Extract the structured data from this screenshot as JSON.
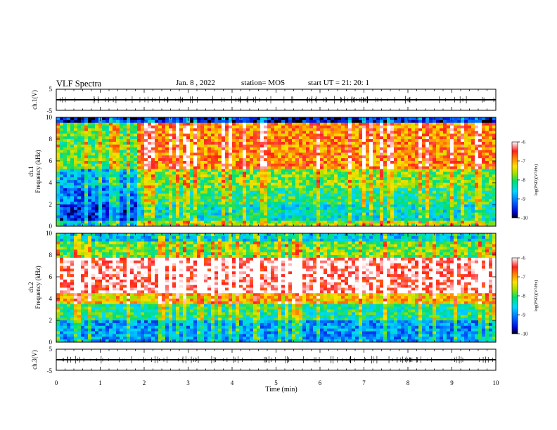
{
  "header": {
    "title": "VLF Spectra",
    "date": "Jan. 8 , 2022",
    "station": "station= MOS",
    "start": "start UT = 21: 20: 1"
  },
  "chart_data": [
    {
      "type": "line",
      "panel": "ch1-waveform",
      "ylabel": "ch.1(V)",
      "yticks": [
        "5",
        "-5"
      ],
      "ylim": [
        -5,
        5
      ],
      "xlim": [
        0,
        10
      ],
      "baseline": 0
    },
    {
      "type": "heatmap",
      "panel": "ch1-spectrogram",
      "ylabel_line1": "ch.1",
      "ylabel_line2": "Frequency (kHz)",
      "ylim": [
        0,
        10
      ],
      "yticks": [
        "0",
        "2",
        "4",
        "6",
        "8",
        "10"
      ],
      "xlim": [
        0,
        10
      ],
      "colorbar": {
        "label": "log(PSD)(V²/Hz)",
        "ticks": [
          "-6",
          "-7",
          "-8",
          "-9",
          "-10"
        ],
        "range": [
          -10,
          -6
        ]
      },
      "bands": [
        {
          "lo": 9.5,
          "hi": 10.0,
          "level": -9.6
        },
        {
          "lo": 5.2,
          "hi": 9.5,
          "level": -6.9
        },
        {
          "lo": 3.6,
          "hi": 5.2,
          "level": -7.8
        },
        {
          "lo": 2.0,
          "hi": 3.6,
          "level": -8.1
        },
        {
          "lo": 0.5,
          "hi": 2.0,
          "level": -8.4
        },
        {
          "lo": 0.0,
          "hi": 0.5,
          "level": -7.6
        }
      ],
      "early_quiet_until_min": 1.8
    },
    {
      "type": "heatmap",
      "panel": "ch2-spectrogram",
      "ylabel_line1": "ch.2",
      "ylabel_line2": "Frequency (kHz)",
      "ylim": [
        0,
        10
      ],
      "yticks": [
        "0",
        "2",
        "4",
        "6",
        "8",
        "10"
      ],
      "xlim": [
        0,
        10
      ],
      "colorbar": {
        "label": "log(PSD)(V²/Hz)",
        "ticks": [
          "-6",
          "-7",
          "-8",
          "-9",
          "-10"
        ],
        "range": [
          -10,
          -6
        ]
      },
      "bands": [
        {
          "lo": 9.2,
          "hi": 10.0,
          "level": -8.6
        },
        {
          "lo": 7.8,
          "hi": 9.2,
          "level": -7.8
        },
        {
          "lo": 4.5,
          "hi": 7.8,
          "level": -6.2
        },
        {
          "lo": 3.6,
          "hi": 4.5,
          "level": -7.2
        },
        {
          "lo": 2.0,
          "hi": 3.6,
          "level": -8.2
        },
        {
          "lo": 0.0,
          "hi": 2.0,
          "level": -8.9
        }
      ],
      "early_quiet_until_min": 0
    },
    {
      "type": "line",
      "panel": "ch3-waveform",
      "ylabel": "ch.3(V)",
      "yticks": [
        "5",
        "-5"
      ],
      "ylim": [
        -5,
        5
      ],
      "xlim": [
        0,
        10
      ],
      "baseline": 0
    }
  ],
  "x_axis": {
    "label": "Time (min)",
    "ticks": [
      "0",
      "1",
      "2",
      "3",
      "4",
      "5",
      "6",
      "7",
      "8",
      "9",
      "10"
    ]
  }
}
